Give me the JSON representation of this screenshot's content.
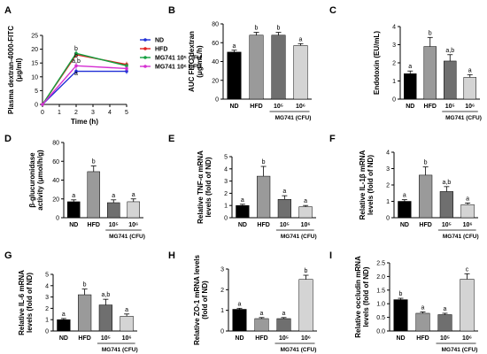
{
  "figure": {
    "panels": [
      {
        "letter": "A",
        "type": "line",
        "ylabel": [
          "Plasma dextran-4000-FITC",
          "(μg/ml)"
        ],
        "xlabel": "Time (h)",
        "ylim": [
          0,
          25
        ],
        "yticks": [
          "0",
          "5",
          "10",
          "15",
          "20",
          "25"
        ],
        "xlim": [
          0,
          5
        ],
        "xticks": [
          "0",
          "1",
          "2",
          "3",
          "4",
          "5"
        ],
        "x": [
          0,
          2,
          5
        ],
        "series": [
          {
            "name": "ND",
            "color": "#1f2fd6",
            "values": [
              0,
              12,
              12
            ]
          },
          {
            "name": "HFD",
            "color": "#e0201f",
            "values": [
              0,
              18,
              14.5
            ]
          },
          {
            "name": "MG741 10⁵ CFU",
            "color": "#14a040",
            "values": [
              0,
              18.5,
              14
            ]
          },
          {
            "name": "MG741 10⁶ CFU",
            "color": "#d52fd2",
            "values": [
              0,
              14,
              13
            ]
          }
        ],
        "point_labels": [
          {
            "text": "b",
            "x": 2,
            "y": 19.5
          },
          {
            "text": "b",
            "x": 2,
            "y": 17
          },
          {
            "text": "a,b",
            "x": 2,
            "y": 15
          },
          {
            "text": "a",
            "x": 2,
            "y": 10.5
          }
        ]
      },
      {
        "letter": "B",
        "type": "bar",
        "ylabel": [
          "AUC FITC-dextran",
          "(μg/mL/h)"
        ],
        "ylim": [
          0,
          80
        ],
        "yticks": [
          "0",
          "20",
          "40",
          "60",
          "80"
        ],
        "categories": [
          "ND",
          "HFD",
          "10⁵",
          "10⁶"
        ],
        "values": [
          50,
          68,
          68,
          57
        ],
        "errors": [
          2,
          3,
          3,
          2
        ],
        "sig": [
          "a",
          "b",
          "b",
          "a"
        ],
        "group_label": "MG741 (CFU)"
      },
      {
        "letter": "C",
        "type": "bar",
        "ylabel": [
          "Endotoxin (EU/mL)"
        ],
        "ylim": [
          0,
          4
        ],
        "yticks": [
          "0",
          "1",
          "2",
          "3",
          "4"
        ],
        "categories": [
          "ND",
          "HFD",
          "10⁵",
          "10⁶"
        ],
        "values": [
          1.4,
          2.9,
          2.1,
          1.2
        ],
        "errors": [
          0.15,
          0.5,
          0.35,
          0.15
        ],
        "sig": [
          "a",
          "b",
          "a,b",
          "a"
        ],
        "group_label": "MG741 (CFU)"
      },
      {
        "letter": "D",
        "type": "bar",
        "ylabel": [
          "β-glucuronidase",
          "activity (μmol/h/g)"
        ],
        "ylim": [
          0,
          80
        ],
        "yticks": [
          "0",
          "20",
          "40",
          "60",
          "80"
        ],
        "categories": [
          "ND",
          "HFD",
          "10⁵",
          "10⁶"
        ],
        "values": [
          17,
          49,
          16,
          17
        ],
        "errors": [
          2,
          6,
          3,
          3
        ],
        "sig": [
          "a",
          "b",
          "a",
          "a"
        ],
        "group_label": "MG741 (CFU)"
      },
      {
        "letter": "E",
        "type": "bar",
        "ylabel": [
          "Relative TNF-α mRNA",
          "levels (fold of ND)"
        ],
        "ylim": [
          0,
          5
        ],
        "yticks": [
          "0",
          "1",
          "2",
          "3",
          "4",
          "5"
        ],
        "categories": [
          "ND",
          "HFD",
          "10⁵",
          "10⁶"
        ],
        "values": [
          1.0,
          3.4,
          1.5,
          0.9
        ],
        "errors": [
          0.1,
          0.8,
          0.3,
          0.1
        ],
        "sig": [
          "a",
          "b",
          "a",
          "a"
        ],
        "group_label": "MG741 (CFU)"
      },
      {
        "letter": "F",
        "type": "bar",
        "ylabel": [
          "Relative IL-1β mRNA",
          "levels (fold of ND)"
        ],
        "ylim": [
          0,
          4
        ],
        "yticks": [
          "0",
          "1",
          "2",
          "3",
          "4"
        ],
        "categories": [
          "ND",
          "HFD",
          "10⁵",
          "10⁶"
        ],
        "values": [
          1.0,
          2.6,
          1.6,
          0.8
        ],
        "errors": [
          0.1,
          0.5,
          0.3,
          0.1
        ],
        "sig": [
          "a",
          "b",
          "a,b",
          "a"
        ],
        "group_label": "MG741 (CFU)"
      },
      {
        "letter": "G",
        "type": "bar",
        "ylabel": [
          "Relative IL-6 mRNA",
          "levels (fold of ND)"
        ],
        "ylim": [
          0,
          5
        ],
        "yticks": [
          "0",
          "1",
          "2",
          "3",
          "4",
          "5"
        ],
        "categories": [
          "ND",
          "HFD",
          "10⁵",
          "10⁶"
        ],
        "values": [
          1.0,
          3.2,
          2.3,
          1.3
        ],
        "errors": [
          0.1,
          0.5,
          0.5,
          0.2
        ],
        "sig": [
          "a",
          "b",
          "a,b",
          "a"
        ],
        "group_label": "MG741 (CFU)"
      },
      {
        "letter": "H",
        "type": "bar",
        "ylabel": [
          "Relative ZO-1 mRNA levels",
          "(fold of ND)"
        ],
        "ylim": [
          0,
          3
        ],
        "yticks": [
          "0",
          "1",
          "2",
          "3"
        ],
        "categories": [
          "ND",
          "HFD",
          "10⁵",
          "10⁶"
        ],
        "values": [
          1.05,
          0.6,
          0.6,
          2.5
        ],
        "errors": [
          0.05,
          0.05,
          0.05,
          0.2
        ],
        "sig": [
          "a",
          "a",
          "a",
          "b"
        ],
        "group_label": "MG741 (CFU)"
      },
      {
        "letter": "I",
        "type": "bar",
        "ylabel": [
          "Relative occludin mRNA",
          "levels (fold of ND)"
        ],
        "ylim": [
          0,
          2.5
        ],
        "yticks": [
          "0.0",
          "0.5",
          "1.0",
          "1.5",
          "2.0",
          "2.5"
        ],
        "categories": [
          "ND",
          "HFD",
          "10⁵",
          "10⁶"
        ],
        "values": [
          1.15,
          0.65,
          0.6,
          1.9
        ],
        "errors": [
          0.05,
          0.05,
          0.05,
          0.2
        ],
        "sig": [
          "b",
          "a",
          "a",
          "c"
        ],
        "group_label": "MG741 (CFU)"
      }
    ],
    "bar_colors": [
      "#000000",
      "#9a9a9a",
      "#6f6f6f",
      "#d4d4d4"
    ]
  },
  "chart_data": [
    {
      "type": "line",
      "panel": "A",
      "x": [
        0,
        2,
        5
      ],
      "series": [
        {
          "name": "ND",
          "values": [
            0,
            12,
            12
          ]
        },
        {
          "name": "HFD",
          "values": [
            0,
            18,
            14.5
          ]
        },
        {
          "name": "MG741 10⁵ CFU",
          "values": [
            0,
            18.5,
            14
          ]
        },
        {
          "name": "MG741 10⁶ CFU",
          "values": [
            0,
            14,
            13
          ]
        }
      ],
      "xlabel": "Time (h)",
      "ylabel": "Plasma dextran-4000-FITC (μg/ml)",
      "xlim": [
        0,
        5
      ],
      "ylim": [
        0,
        25
      ],
      "legend": "right"
    },
    {
      "type": "bar",
      "panel": "B",
      "categories": [
        "ND",
        "HFD",
        "10⁵",
        "10⁶"
      ],
      "values": [
        50,
        68,
        68,
        57
      ],
      "ylabel": "AUC FITC-dextran (μg/mL/h)",
      "ylim": [
        0,
        80
      ]
    },
    {
      "type": "bar",
      "panel": "C",
      "categories": [
        "ND",
        "HFD",
        "10⁵",
        "10⁶"
      ],
      "values": [
        1.4,
        2.9,
        2.1,
        1.2
      ],
      "ylabel": "Endotoxin (EU/mL)",
      "ylim": [
        0,
        4
      ]
    },
    {
      "type": "bar",
      "panel": "D",
      "categories": [
        "ND",
        "HFD",
        "10⁵",
        "10⁶"
      ],
      "values": [
        17,
        49,
        16,
        17
      ],
      "ylabel": "β-glucuronidase activity (μmol/h/g)",
      "ylim": [
        0,
        80
      ]
    },
    {
      "type": "bar",
      "panel": "E",
      "categories": [
        "ND",
        "HFD",
        "10⁵",
        "10⁶"
      ],
      "values": [
        1.0,
        3.4,
        1.5,
        0.9
      ],
      "ylabel": "Relative TNF-α mRNA levels (fold of ND)",
      "ylim": [
        0,
        5
      ]
    },
    {
      "type": "bar",
      "panel": "F",
      "categories": [
        "ND",
        "HFD",
        "10⁵",
        "10⁶"
      ],
      "values": [
        1.0,
        2.6,
        1.6,
        0.8
      ],
      "ylabel": "Relative IL-1β mRNA levels (fold of ND)",
      "ylim": [
        0,
        4
      ]
    },
    {
      "type": "bar",
      "panel": "G",
      "categories": [
        "ND",
        "HFD",
        "10⁵",
        "10⁶"
      ],
      "values": [
        1.0,
        3.2,
        2.3,
        1.3
      ],
      "ylabel": "Relative IL-6 mRNA levels (fold of ND)",
      "ylim": [
        0,
        5
      ]
    },
    {
      "type": "bar",
      "panel": "H",
      "categories": [
        "ND",
        "HFD",
        "10⁵",
        "10⁶"
      ],
      "values": [
        1.05,
        0.6,
        0.6,
        2.5
      ],
      "ylabel": "Relative ZO-1 mRNA levels (fold of ND)",
      "ylim": [
        0,
        3
      ]
    },
    {
      "type": "bar",
      "panel": "I",
      "categories": [
        "ND",
        "HFD",
        "10⁵",
        "10⁶"
      ],
      "values": [
        1.15,
        0.65,
        0.6,
        1.9
      ],
      "ylabel": "Relative occludin mRNA levels (fold of ND)",
      "ylim": [
        0,
        2.5
      ]
    }
  ]
}
